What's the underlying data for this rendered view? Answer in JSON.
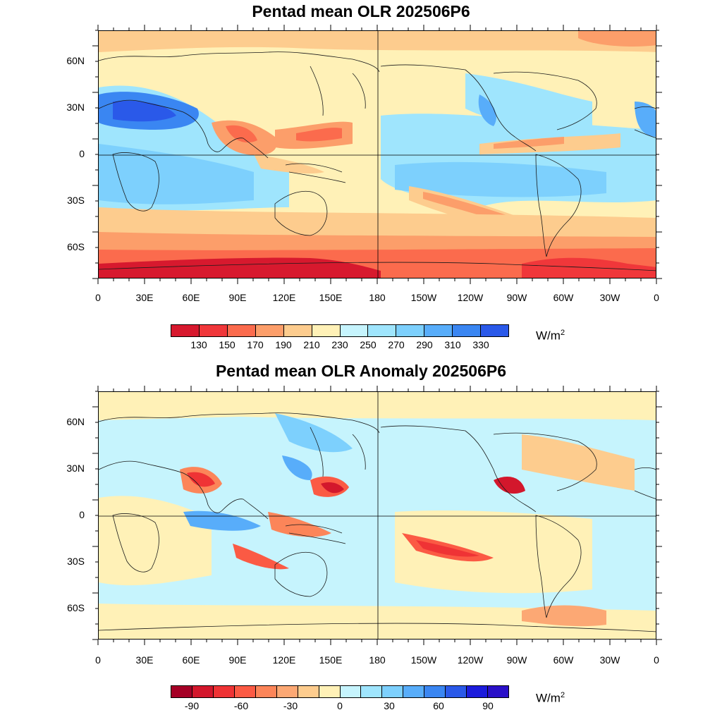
{
  "lat_labels": [
    "60N",
    "30N",
    "0",
    "30S",
    "60S"
  ],
  "lon_labels": [
    "0",
    "30E",
    "60E",
    "90E",
    "120E",
    "150E",
    "180",
    "150W",
    "120W",
    "90W",
    "60W",
    "30W",
    "0"
  ],
  "panels": [
    {
      "title": "Pentad mean OLR 202506P6",
      "units_base": "W/m",
      "units_exp": "2",
      "colorbar_colors": [
        "#d7192e",
        "#f0373a",
        "#fb6b4d",
        "#fc9e6a",
        "#fdcc8e",
        "#fff1b7",
        "#c6f4fd",
        "#9fe5fd",
        "#7dd0fd",
        "#58adfa",
        "#3a86f2",
        "#2a59e9"
      ],
      "colorbar_labels": [
        "130",
        "150",
        "170",
        "190",
        "210",
        "230",
        "250",
        "270",
        "290",
        "310",
        "330"
      ]
    },
    {
      "title": "Pentad mean OLR Anomaly 202506P6",
      "units_base": "W/m",
      "units_exp": "2",
      "colorbar_colors": [
        "#a50026",
        "#d3172c",
        "#ef3335",
        "#fb5a44",
        "#fc8559",
        "#fca874",
        "#fdcc8e",
        "#fff1b7",
        "#c6f4fd",
        "#9fe5fd",
        "#7dd0fd",
        "#58adfa",
        "#3a86f2",
        "#2a59e9",
        "#1c1cdc",
        "#2a10c8"
      ],
      "colorbar_labels": [
        "-90",
        "-60",
        "-30",
        "0",
        "30",
        "60",
        "90"
      ]
    }
  ]
}
